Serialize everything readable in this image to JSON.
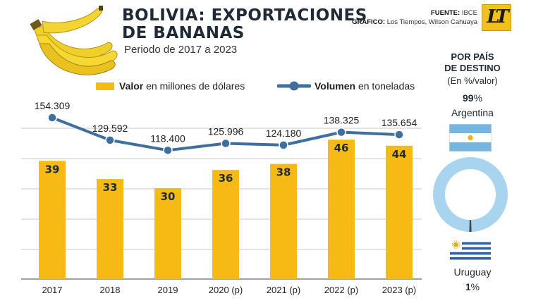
{
  "header": {
    "title_line1": "BOLIVIA: EXPORTACIONES",
    "title_line2": "DE BANANAS",
    "subtitle": "Periodo de 2017 a 2023",
    "source_key": "FUENTE:",
    "source_value": "IBCE",
    "graphic_key": "GRÁFICO:",
    "graphic_value": "Los Tiempos, Wilson Cahuaya",
    "logo_text": "LT"
  },
  "legend": {
    "bar_bold": "Valor",
    "bar_rest": " en millones de dólares",
    "line_bold": "Volumen",
    "line_rest": " en toneladas"
  },
  "chart_data": {
    "type": "bar",
    "categories": [
      "2017",
      "2018",
      "2019",
      "2020 (p)",
      "2021 (p)",
      "2022 (p)",
      "2023 (p)"
    ],
    "series": [
      {
        "name": "Valor en millones de dólares",
        "type": "bar",
        "values": [
          39,
          33,
          30,
          36,
          38,
          46,
          44
        ],
        "labels": [
          "39",
          "33",
          "30",
          "36",
          "38",
          "46",
          "44"
        ],
        "color": "#f7b914"
      },
      {
        "name": "Volumen en toneladas",
        "type": "line",
        "values": [
          154309,
          129592,
          118400,
          125996,
          124180,
          138325,
          135654
        ],
        "labels": [
          "154.309",
          "129.592",
          "118.400",
          "125.996",
          "124.180",
          "138.325",
          "135.654"
        ],
        "color": "#3e6f9e"
      }
    ],
    "grid": true,
    "title": "",
    "xlabel": "",
    "ylabel": ""
  },
  "side": {
    "heading_line1": "POR PAÍS",
    "heading_line2": "DE DESTINO",
    "note": "(En %/valor)",
    "countries": [
      {
        "name": "Argentina",
        "pct_num": "99",
        "pct_sign": "%",
        "share": 99
      },
      {
        "name": "Uruguay",
        "pct_num": "1",
        "pct_sign": "%",
        "share": 1
      }
    ],
    "donut_color": "#a9d4ef"
  }
}
